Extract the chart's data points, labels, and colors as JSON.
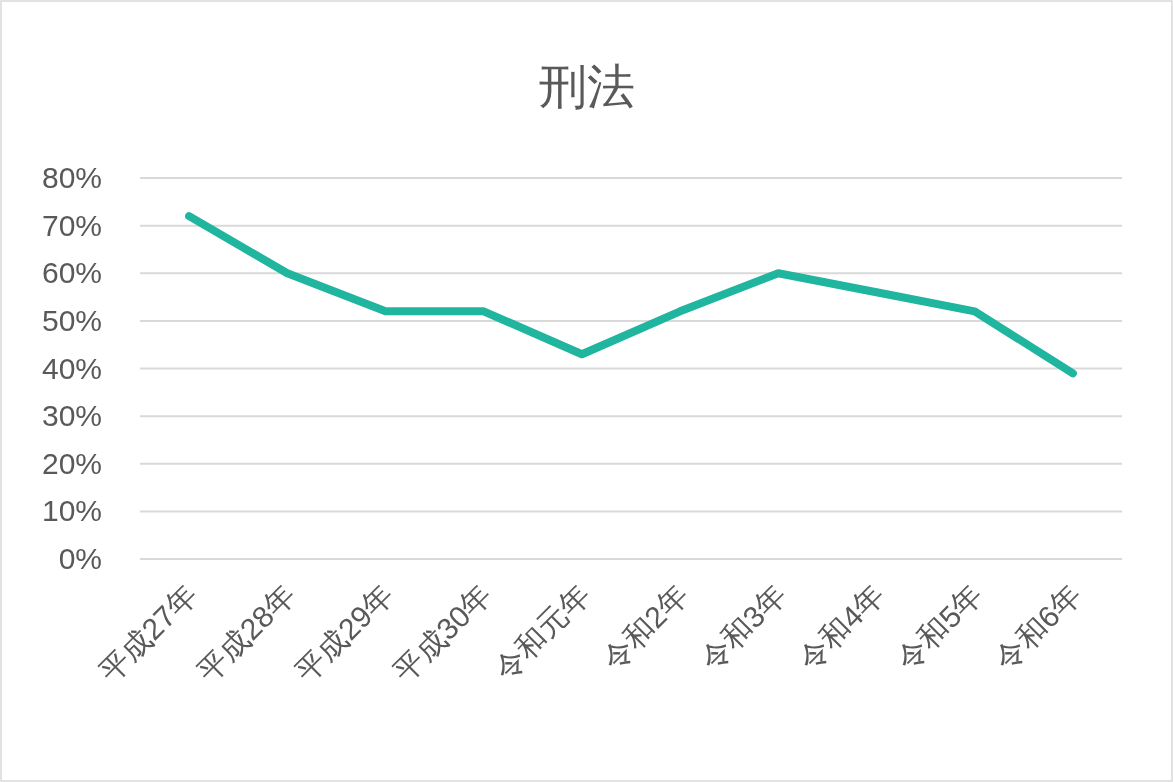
{
  "chart_data": {
    "type": "line",
    "title": "刑法",
    "categories": [
      "平成27年",
      "平成28年",
      "平成29年",
      "平成30年",
      "令和元年",
      "令和2年",
      "令和3年",
      "令和4年",
      "令和5年",
      "令和6年"
    ],
    "series": [
      {
        "color": "#1fb59e",
        "values": [
          72,
          60,
          52,
          52,
          43,
          52,
          60,
          56,
          52,
          39
        ]
      }
    ],
    "ylim": [
      0,
      80
    ],
    "yticks": [
      {
        "value": 0,
        "label": "0%"
      },
      {
        "value": 10,
        "label": "10%"
      },
      {
        "value": 20,
        "label": "20%"
      },
      {
        "value": 30,
        "label": "30%"
      },
      {
        "value": 40,
        "label": "40%"
      },
      {
        "value": 50,
        "label": "50%"
      },
      {
        "value": 60,
        "label": "60%"
      },
      {
        "value": 70,
        "label": "70%"
      },
      {
        "value": 80,
        "label": "80%"
      }
    ],
    "grid": "y"
  }
}
